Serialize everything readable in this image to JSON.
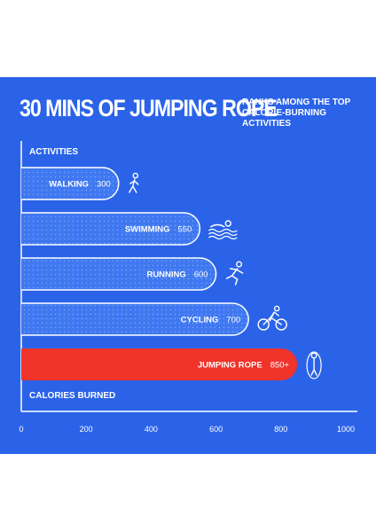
{
  "header": {
    "title": "30 MINS OF JUMPING ROPE",
    "subtitle": "RANKS AMONG THE TOP\nCALORIE-BURNING\nACTIVITIES"
  },
  "colors": {
    "background": "#2b63e8",
    "bar": "#3f78f0",
    "bar_outline": "#ffffff",
    "highlight": "#f0332b"
  },
  "chart_data": {
    "type": "bar",
    "orientation": "horizontal",
    "ylabel": "ACTIVITIES",
    "xlabel": "CALORIES BURNED",
    "xlim": [
      0,
      1000
    ],
    "x_ticks": [
      "0",
      "200",
      "400",
      "600",
      "800",
      "1000"
    ],
    "grid": false,
    "categories": [
      "WALKING",
      "SWIMMING",
      "RUNNING",
      "CYCLING",
      "JUMPING ROPE"
    ],
    "values": [
      300,
      550,
      600,
      700,
      850
    ],
    "value_labels": [
      "300",
      "550",
      "600",
      "700",
      "850+"
    ],
    "icons": [
      "walking-person-icon",
      "swimmer-icon",
      "runner-icon",
      "cyclist-icon",
      "jump-rope-icon"
    ],
    "highlight_category": "JUMPING ROPE"
  }
}
